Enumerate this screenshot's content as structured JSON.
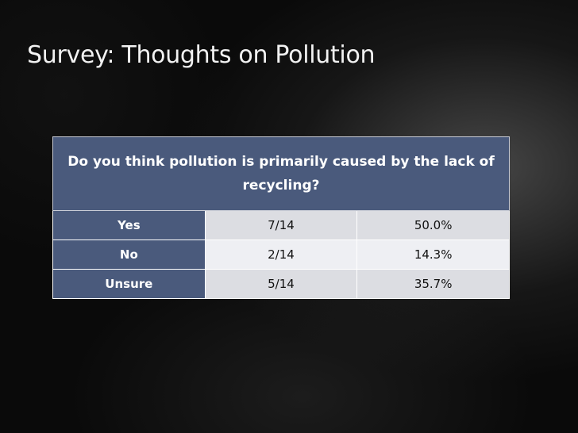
{
  "slide": {
    "title": "Survey: Thoughts on Pollution"
  },
  "table": {
    "question": "Do you think pollution is primarily caused by the lack of recycling?",
    "rows": [
      {
        "answer": "Yes",
        "count": "7/14",
        "percent": "50.0%"
      },
      {
        "answer": "No",
        "count": "2/14",
        "percent": "14.3%"
      },
      {
        "answer": "Unsure",
        "count": "5/14",
        "percent": "35.7%"
      }
    ]
  },
  "colors": {
    "header_fill": "#4a5a7c",
    "label_fill": "#4a5a7c",
    "value_fill": "#dcdde2",
    "title_text": "#f2f2f2"
  }
}
